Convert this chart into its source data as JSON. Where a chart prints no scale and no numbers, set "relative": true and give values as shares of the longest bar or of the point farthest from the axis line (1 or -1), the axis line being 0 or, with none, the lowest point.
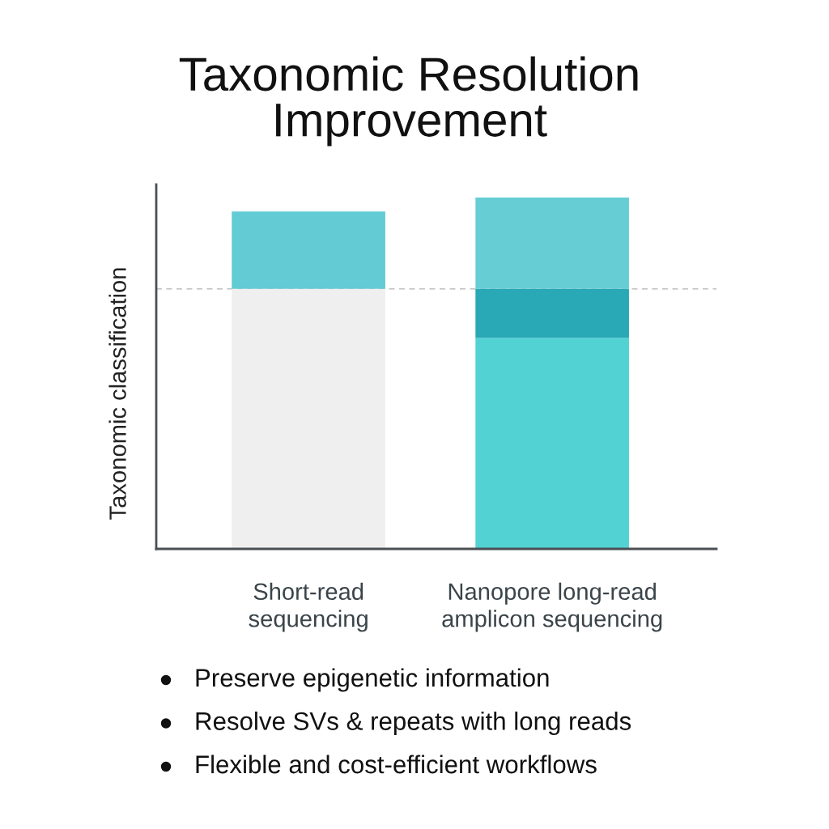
{
  "chart_data": {
    "type": "bar",
    "title": "Taxonomic Resolution\nImprovement",
    "ylabel": "Taxonomic classification",
    "categories": [
      "Short-read\nsequencing",
      "Nanopore long-read\namplicon sequencing"
    ],
    "stacked": true,
    "relative": true,
    "series": [
      {
        "values": [
          0.74,
          0.6
        ],
        "colors": [
          "#efefef",
          "#52d2d2"
        ]
      },
      {
        "values": [
          0.22,
          0.14
        ],
        "colors": [
          "#62cbd4",
          "#29a8b5"
        ]
      },
      {
        "values": [
          null,
          0.26
        ],
        "colors": [
          null,
          "#66cdd4"
        ]
      }
    ],
    "ref_lines": [
      {
        "axis": "y",
        "value": 0.74,
        "color": "#b4b4b4",
        "line_style": "dashed"
      }
    ],
    "annotations": [
      "Preserve epigenetic information",
      "Resolve SVs & repeats with long reads",
      "Flexible and cost-efficient workflows"
    ]
  }
}
